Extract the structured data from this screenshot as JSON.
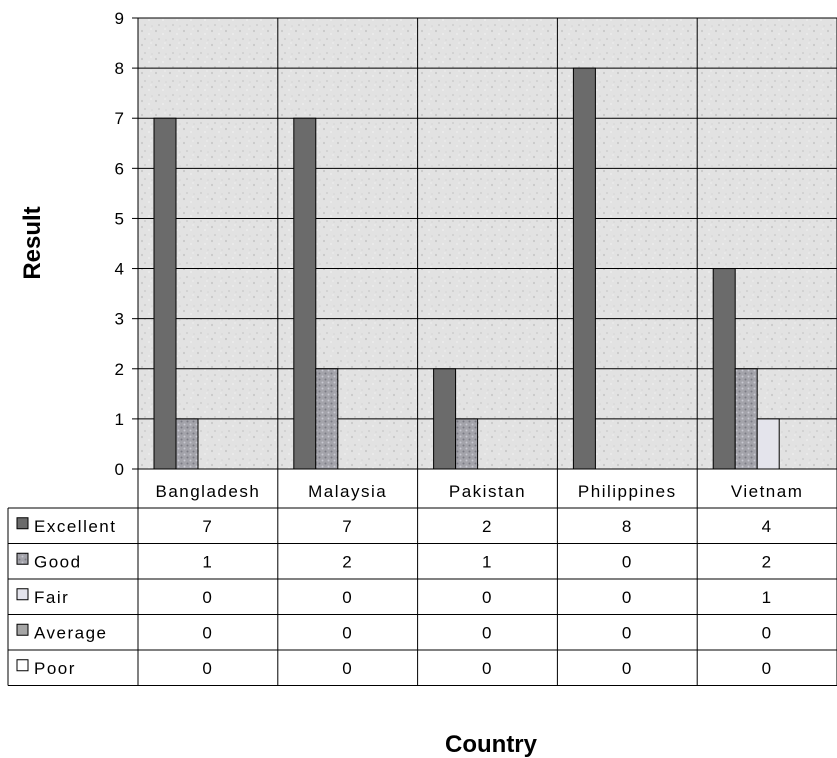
{
  "chart_data": {
    "type": "bar",
    "title": "",
    "xlabel": "Country",
    "ylabel": "Result",
    "ylim": [
      0,
      9
    ],
    "yticks": [
      0,
      1,
      2,
      3,
      4,
      5,
      6,
      7,
      8,
      9
    ],
    "grid": true,
    "legend": "data-table",
    "categories": [
      "Bangladesh",
      "Malaysia",
      "Pakistan",
      "Philippines",
      "Vietnam"
    ],
    "series": [
      {
        "name": "Excellent",
        "values": [
          7,
          7,
          2,
          8,
          4
        ],
        "color": "#6b6b6b",
        "pattern": "solid"
      },
      {
        "name": "Good",
        "values": [
          1,
          2,
          1,
          0,
          2
        ],
        "color": "#9a9aa0",
        "pattern": "textured"
      },
      {
        "name": "Fair",
        "values": [
          0,
          0,
          0,
          0,
          1
        ],
        "color": "#e4e4ec",
        "pattern": "solid"
      },
      {
        "name": "Average",
        "values": [
          0,
          0,
          0,
          0,
          0
        ],
        "color": "#a6a6a6",
        "pattern": "solid"
      },
      {
        "name": "Poor",
        "values": [
          0,
          0,
          0,
          0,
          0
        ],
        "color": "#ffffff",
        "pattern": "solid"
      }
    ]
  }
}
